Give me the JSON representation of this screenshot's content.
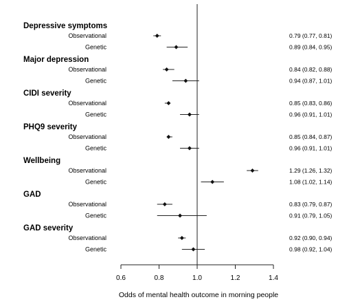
{
  "chart_data": {
    "type": "forest",
    "xlabel": "Odds of mental health outcome in morning people",
    "x_ticks": [
      0.6,
      0.8,
      1.0,
      1.2,
      1.4
    ],
    "xlim": [
      0.6,
      1.4
    ],
    "reference_line": 1.0,
    "groups": [
      {
        "name": "Depressive symptoms",
        "rows": [
          {
            "label": "Observational",
            "or": 0.79,
            "lo": 0.77,
            "hi": 0.81,
            "text": "0.79 (0.77, 0.81)"
          },
          {
            "label": "Genetic",
            "or": 0.89,
            "lo": 0.84,
            "hi": 0.95,
            "text": "0.89 (0.84, 0.95)"
          }
        ]
      },
      {
        "name": "Major depression",
        "rows": [
          {
            "label": "Observational",
            "or": 0.84,
            "lo": 0.82,
            "hi": 0.88,
            "text": "0.84 (0.82, 0.88)"
          },
          {
            "label": "Genetic",
            "or": 0.94,
            "lo": 0.87,
            "hi": 1.01,
            "text": "0.94 (0.87, 1.01)"
          }
        ]
      },
      {
        "name": "CIDI severity",
        "rows": [
          {
            "label": "Observational",
            "or": 0.85,
            "lo": 0.83,
            "hi": 0.86,
            "text": "0.85 (0.83, 0.86)"
          },
          {
            "label": "Genetic",
            "or": 0.96,
            "lo": 0.91,
            "hi": 1.01,
            "text": "0.96 (0.91, 1.01)"
          }
        ]
      },
      {
        "name": "PHQ9 severity",
        "rows": [
          {
            "label": "Observational",
            "or": 0.85,
            "lo": 0.84,
            "hi": 0.87,
            "text": "0.85 (0.84, 0.87)"
          },
          {
            "label": "Genetic",
            "or": 0.96,
            "lo": 0.91,
            "hi": 1.01,
            "text": "0.96 (0.91, 1.01)"
          }
        ]
      },
      {
        "name": "Wellbeing",
        "rows": [
          {
            "label": "Observational",
            "or": 1.29,
            "lo": 1.26,
            "hi": 1.32,
            "text": "1.29 (1.26, 1.32)"
          },
          {
            "label": "Genetic",
            "or": 1.08,
            "lo": 1.02,
            "hi": 1.14,
            "text": "1.08 (1.02, 1.14)"
          }
        ]
      },
      {
        "name": "GAD",
        "rows": [
          {
            "label": "Observational",
            "or": 0.83,
            "lo": 0.79,
            "hi": 0.87,
            "text": "0.83 (0.79, 0.87)"
          },
          {
            "label": "Genetic",
            "or": 0.91,
            "lo": 0.79,
            "hi": 1.05,
            "text": "0.91 (0.79, 1.05)"
          }
        ]
      },
      {
        "name": "GAD severity",
        "rows": [
          {
            "label": "Observational",
            "or": 0.92,
            "lo": 0.9,
            "hi": 0.94,
            "text": "0.92 (0.90, 0.94)"
          },
          {
            "label": "Genetic",
            "or": 0.98,
            "lo": 0.92,
            "hi": 1.04,
            "text": "0.98 (0.92, 1.04)"
          }
        ]
      }
    ]
  }
}
